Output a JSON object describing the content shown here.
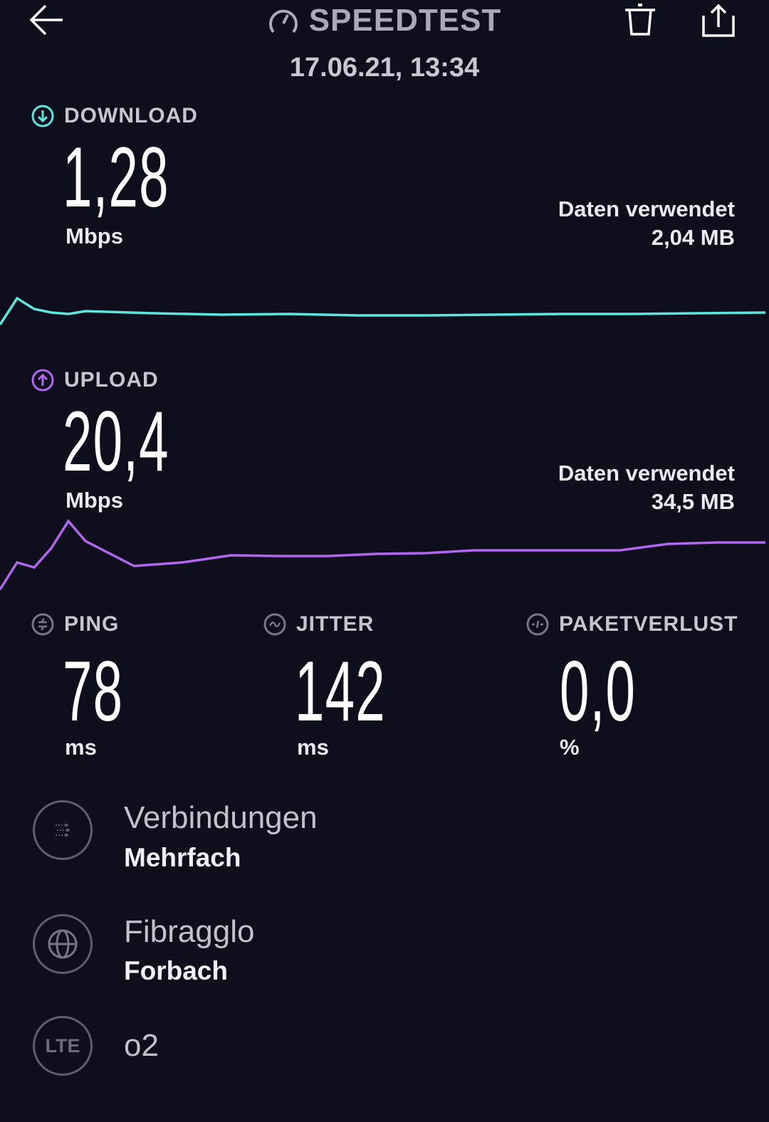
{
  "header": {
    "title": "SPEEDTEST",
    "date": "17.06.21, 13:34",
    "back_icon": "arrow-left-icon",
    "delete_icon": "trash-icon",
    "share_icon": "share-icon"
  },
  "download": {
    "label": "DOWNLOAD",
    "value": "1,28",
    "unit": "Mbps",
    "data_label": "Daten verwendet",
    "data_value": "2,04 MB",
    "color": "#5ce6dc",
    "graph": [
      0,
      37,
      22,
      17,
      15,
      19,
      16,
      14,
      15,
      13,
      13,
      14,
      15,
      15,
      16,
      17
    ]
  },
  "upload": {
    "label": "UPLOAD",
    "value": "20,4",
    "unit": "Mbps",
    "data_label": "Daten verwendet",
    "data_value": "34,5 MB",
    "color": "#b266f0",
    "graph": [
      0,
      38,
      31,
      58,
      96,
      68,
      33,
      38,
      48,
      47,
      47,
      50,
      51,
      55,
      55,
      55,
      55,
      64,
      66,
      66
    ]
  },
  "metrics": [
    {
      "label": "PING",
      "value": "78",
      "unit": "ms",
      "icon": "ping-icon"
    },
    {
      "label": "JITTER",
      "value": "142",
      "unit": "ms",
      "icon": "jitter-icon"
    },
    {
      "label": "PAKETVERLUST",
      "value": "0,0",
      "unit": "%",
      "icon": "packet-loss-icon"
    }
  ],
  "info": [
    {
      "title": "Verbindungen",
      "subtitle": "Mehrfach",
      "icon": "connections-icon"
    },
    {
      "title": "Fibragglo",
      "subtitle": "Forbach",
      "icon": "globe-icon"
    },
    {
      "title": "o2",
      "icon": "lte-icon",
      "icon_text": "LTE"
    }
  ]
}
